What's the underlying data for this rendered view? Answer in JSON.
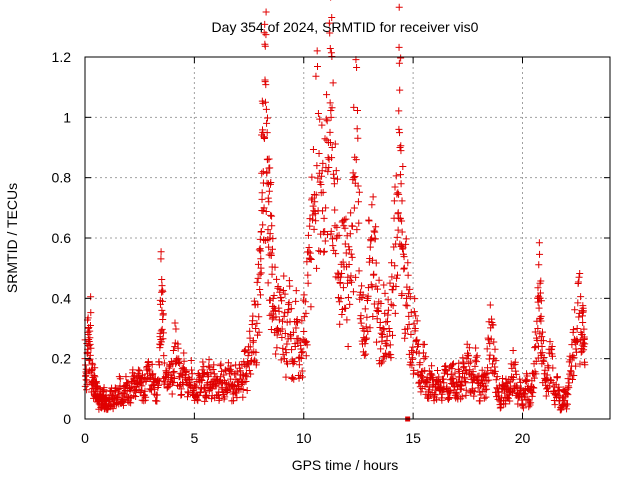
{
  "chart_data": {
    "type": "scatter",
    "title": "Day 354 of 2024, SRMTID for receiver vis0",
    "xlabel": "GPS time / hours",
    "ylabel": "SRMTID / TECUs",
    "xlim": [
      0,
      24
    ],
    "ylim": [
      0,
      1.2
    ],
    "x_ticks": [
      0,
      5,
      10,
      15,
      20
    ],
    "x_tick_labels": [
      "0",
      "5",
      "10",
      "15",
      "20"
    ],
    "y_ticks": [
      0,
      0.2,
      0.4,
      0.6,
      0.8,
      1.0,
      1.2
    ],
    "y_tick_labels": [
      "0",
      "0.2",
      "0.4",
      "0.6",
      "0.8",
      "1",
      "1.2"
    ],
    "grid": true,
    "marker": "plus",
    "color": "#e00000",
    "series": [
      {
        "name": "vis0",
        "points": [
          [
            0.0,
            0.2
          ],
          [
            0.05,
            0.13
          ],
          [
            0.1,
            0.22
          ],
          [
            0.15,
            0.28
          ],
          [
            0.2,
            0.16
          ],
          [
            0.25,
            0.31
          ],
          [
            0.3,
            0.12
          ],
          [
            0.35,
            0.18
          ],
          [
            0.4,
            0.09
          ],
          [
            0.45,
            0.14
          ],
          [
            0.5,
            0.07
          ],
          [
            0.55,
            0.11
          ],
          [
            0.6,
            0.06
          ],
          [
            0.65,
            0.05
          ],
          [
            0.7,
            0.08
          ],
          [
            0.75,
            0.04
          ],
          [
            0.8,
            0.06
          ],
          [
            0.85,
            0.09
          ],
          [
            0.9,
            0.05
          ],
          [
            0.95,
            0.07
          ],
          [
            1.0,
            0.04
          ],
          [
            1.1,
            0.06
          ],
          [
            1.2,
            0.08
          ],
          [
            1.3,
            0.05
          ],
          [
            1.4,
            0.09
          ],
          [
            1.5,
            0.07
          ],
          [
            1.6,
            0.11
          ],
          [
            1.7,
            0.06
          ],
          [
            1.8,
            0.08
          ],
          [
            1.9,
            0.12
          ],
          [
            2.0,
            0.07
          ],
          [
            2.1,
            0.1
          ],
          [
            2.2,
            0.14
          ],
          [
            2.3,
            0.09
          ],
          [
            2.4,
            0.12
          ],
          [
            2.5,
            0.16
          ],
          [
            2.6,
            0.11
          ],
          [
            2.7,
            0.08
          ],
          [
            2.8,
            0.13
          ],
          [
            2.9,
            0.19
          ],
          [
            3.0,
            0.1
          ],
          [
            3.1,
            0.15
          ],
          [
            3.2,
            0.12
          ],
          [
            3.3,
            0.08
          ],
          [
            3.4,
            0.18
          ],
          [
            3.45,
            0.38
          ],
          [
            3.5,
            0.42
          ],
          [
            3.55,
            0.33
          ],
          [
            3.6,
            0.21
          ],
          [
            3.7,
            0.16
          ],
          [
            3.8,
            0.13
          ],
          [
            3.9,
            0.18
          ],
          [
            4.0,
            0.12
          ],
          [
            4.1,
            0.24
          ],
          [
            4.2,
            0.2
          ],
          [
            4.3,
            0.14
          ],
          [
            4.4,
            0.1
          ],
          [
            4.5,
            0.17
          ],
          [
            4.6,
            0.13
          ],
          [
            4.7,
            0.09
          ],
          [
            4.8,
            0.12
          ],
          [
            4.9,
            0.15
          ],
          [
            5.0,
            0.11
          ],
          [
            5.1,
            0.08
          ],
          [
            5.2,
            0.13
          ],
          [
            5.3,
            0.1
          ],
          [
            5.4,
            0.14
          ],
          [
            5.5,
            0.09
          ],
          [
            5.6,
            0.12
          ],
          [
            5.7,
            0.17
          ],
          [
            5.8,
            0.1
          ],
          [
            5.9,
            0.13
          ],
          [
            6.0,
            0.11
          ],
          [
            6.1,
            0.08
          ],
          [
            6.2,
            0.14
          ],
          [
            6.3,
            0.09
          ],
          [
            6.4,
            0.12
          ],
          [
            6.5,
            0.1
          ],
          [
            6.6,
            0.15
          ],
          [
            6.7,
            0.11
          ],
          [
            6.8,
            0.09
          ],
          [
            6.9,
            0.13
          ],
          [
            7.0,
            0.1
          ],
          [
            7.1,
            0.16
          ],
          [
            7.2,
            0.12
          ],
          [
            7.3,
            0.18
          ],
          [
            7.4,
            0.14
          ],
          [
            7.5,
            0.22
          ],
          [
            7.6,
            0.19
          ],
          [
            7.7,
            0.26
          ],
          [
            7.8,
            0.3
          ],
          [
            7.9,
            0.38
          ],
          [
            8.0,
            0.48
          ],
          [
            8.05,
            0.62
          ],
          [
            8.1,
            0.75
          ],
          [
            8.15,
            0.82
          ],
          [
            8.2,
            0.93
          ],
          [
            8.25,
            1.05
          ],
          [
            8.3,
            0.98
          ],
          [
            8.35,
            0.86
          ],
          [
            8.4,
            0.72
          ],
          [
            8.45,
            0.6
          ],
          [
            8.5,
            0.55
          ],
          [
            8.55,
            0.48
          ],
          [
            8.6,
            0.4
          ],
          [
            8.7,
            0.36
          ],
          [
            8.8,
            0.3
          ],
          [
            8.9,
            0.42
          ],
          [
            9.0,
            0.27
          ],
          [
            9.1,
            0.34
          ],
          [
            9.2,
            0.22
          ],
          [
            9.3,
            0.38
          ],
          [
            9.4,
            0.28
          ],
          [
            9.5,
            0.19
          ],
          [
            9.6,
            0.25
          ],
          [
            9.7,
            0.33
          ],
          [
            9.8,
            0.18
          ],
          [
            9.9,
            0.22
          ],
          [
            10.0,
            0.29
          ],
          [
            10.1,
            0.35
          ],
          [
            10.2,
            0.45
          ],
          [
            10.3,
            0.55
          ],
          [
            10.4,
            0.66
          ],
          [
            10.5,
            0.72
          ],
          [
            10.6,
            0.84
          ],
          [
            10.7,
            0.88
          ],
          [
            10.8,
            0.75
          ],
          [
            10.9,
            0.62
          ],
          [
            11.0,
            0.7
          ],
          [
            11.1,
            0.82
          ],
          [
            11.2,
            0.95
          ],
          [
            11.25,
            1.0
          ],
          [
            11.3,
            0.9
          ],
          [
            11.4,
            0.78
          ],
          [
            11.5,
            0.6
          ],
          [
            11.6,
            0.48
          ],
          [
            11.7,
            0.4
          ],
          [
            11.8,
            0.52
          ],
          [
            11.9,
            0.58
          ],
          [
            12.0,
            0.45
          ],
          [
            12.1,
            0.38
          ],
          [
            12.2,
            0.64
          ],
          [
            12.3,
            0.8
          ],
          [
            12.4,
            0.86
          ],
          [
            12.5,
            0.72
          ],
          [
            12.6,
            0.42
          ],
          [
            12.7,
            0.3
          ],
          [
            12.8,
            0.25
          ],
          [
            12.9,
            0.4
          ],
          [
            13.0,
            0.52
          ],
          [
            13.1,
            0.6
          ],
          [
            13.2,
            0.48
          ],
          [
            13.3,
            0.44
          ],
          [
            13.4,
            0.36
          ],
          [
            13.5,
            0.32
          ],
          [
            13.6,
            0.28
          ],
          [
            13.7,
            0.35
          ],
          [
            13.8,
            0.26
          ],
          [
            13.9,
            0.3
          ],
          [
            14.0,
            0.38
          ],
          [
            14.1,
            0.44
          ],
          [
            14.2,
            0.58
          ],
          [
            14.3,
            0.75
          ],
          [
            14.35,
            0.96
          ],
          [
            14.4,
            0.9
          ],
          [
            14.45,
            0.78
          ],
          [
            14.5,
            0.62
          ],
          [
            14.6,
            0.5
          ],
          [
            14.7,
            0.4
          ],
          [
            14.8,
            0.34
          ],
          [
            14.9,
            0.28
          ],
          [
            15.0,
            0.22
          ],
          [
            15.1,
            0.3
          ],
          [
            15.2,
            0.24
          ],
          [
            15.3,
            0.18
          ],
          [
            15.4,
            0.14
          ],
          [
            15.5,
            0.2
          ],
          [
            15.6,
            0.12
          ],
          [
            15.7,
            0.09
          ],
          [
            15.8,
            0.15
          ],
          [
            15.9,
            0.11
          ],
          [
            16.0,
            0.08
          ],
          [
            16.1,
            0.13
          ],
          [
            16.2,
            0.1
          ],
          [
            16.3,
            0.07
          ],
          [
            16.4,
            0.12
          ],
          [
            16.5,
            0.16
          ],
          [
            16.6,
            0.09
          ],
          [
            16.7,
            0.13
          ],
          [
            16.8,
            0.18
          ],
          [
            16.9,
            0.11
          ],
          [
            17.0,
            0.08
          ],
          [
            17.1,
            0.14
          ],
          [
            17.2,
            0.1
          ],
          [
            17.3,
            0.17
          ],
          [
            17.4,
            0.12
          ],
          [
            17.5,
            0.21
          ],
          [
            17.6,
            0.15
          ],
          [
            17.7,
            0.1
          ],
          [
            17.8,
            0.13
          ],
          [
            17.9,
            0.19
          ],
          [
            18.0,
            0.12
          ],
          [
            18.1,
            0.08
          ],
          [
            18.2,
            0.14
          ],
          [
            18.3,
            0.11
          ],
          [
            18.4,
            0.17
          ],
          [
            18.5,
            0.25
          ],
          [
            18.6,
            0.32
          ],
          [
            18.7,
            0.2
          ],
          [
            18.8,
            0.13
          ],
          [
            18.9,
            0.09
          ],
          [
            19.0,
            0.06
          ],
          [
            19.1,
            0.1
          ],
          [
            19.2,
            0.07
          ],
          [
            19.3,
            0.12
          ],
          [
            19.4,
            0.08
          ],
          [
            19.5,
            0.14
          ],
          [
            19.6,
            0.18
          ],
          [
            19.7,
            0.11
          ],
          [
            19.8,
            0.07
          ],
          [
            19.9,
            0.1
          ],
          [
            20.0,
            0.05
          ],
          [
            20.1,
            0.08
          ],
          [
            20.2,
            0.13
          ],
          [
            20.3,
            0.06
          ],
          [
            20.4,
            0.09
          ],
          [
            20.5,
            0.15
          ],
          [
            20.6,
            0.24
          ],
          [
            20.7,
            0.3
          ],
          [
            20.75,
            0.4
          ],
          [
            20.8,
            0.45
          ],
          [
            20.85,
            0.34
          ],
          [
            20.9,
            0.22
          ],
          [
            21.0,
            0.15
          ],
          [
            21.1,
            0.1
          ],
          [
            21.2,
            0.17
          ],
          [
            21.3,
            0.23
          ],
          [
            21.4,
            0.12
          ],
          [
            21.5,
            0.08
          ],
          [
            21.6,
            0.14
          ],
          [
            21.7,
            0.06
          ],
          [
            21.8,
            0.04
          ],
          [
            21.9,
            0.09
          ],
          [
            22.0,
            0.05
          ],
          [
            22.1,
            0.11
          ],
          [
            22.2,
            0.16
          ],
          [
            22.3,
            0.21
          ],
          [
            22.4,
            0.26
          ],
          [
            22.5,
            0.3
          ],
          [
            22.6,
            0.35
          ],
          [
            22.7,
            0.28
          ],
          [
            22.75,
            0.32
          ],
          [
            22.8,
            0.24
          ],
          [
            22.85,
            0.18
          ]
        ]
      }
    ],
    "highlight_marker": {
      "x": 14.75,
      "y": 0.0
    }
  }
}
